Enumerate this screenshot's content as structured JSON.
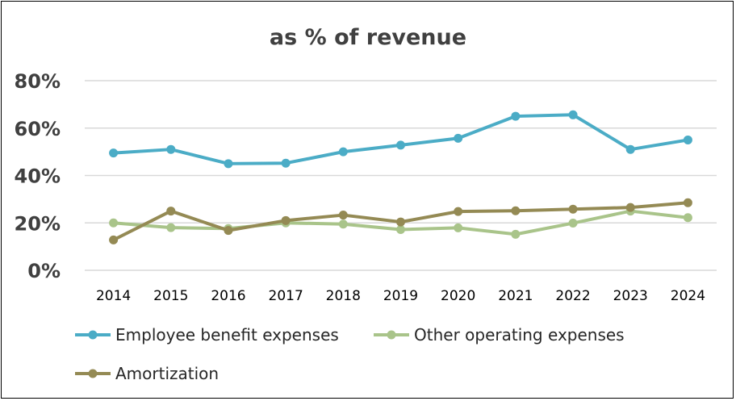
{
  "chart_data": {
    "type": "line",
    "title": "as % of revenue",
    "xlabel": "",
    "ylabel": "",
    "categories": [
      "2014",
      "2015",
      "2016",
      "2017",
      "2018",
      "2019",
      "2020",
      "2021",
      "2022",
      "2023",
      "2024"
    ],
    "ylim": [
      0,
      80
    ],
    "yticks": [
      0,
      20,
      40,
      60,
      80
    ],
    "ytick_labels": [
      "0%",
      "20%",
      "40%",
      "60%",
      "80%"
    ],
    "grid": true,
    "legend_position": "bottom-left",
    "series": [
      {
        "name": "Employee benefit expenses",
        "color": "#4bacc6",
        "values": [
          49.5,
          51,
          45,
          45.2,
          50,
          52.8,
          55.7,
          65,
          65.6,
          51,
          55
        ]
      },
      {
        "name": "Other operating expenses",
        "color": "#a9c48a",
        "values": [
          20,
          18,
          17.6,
          20,
          19.5,
          17.2,
          17.9,
          15.2,
          19.9,
          25,
          22.2
        ]
      },
      {
        "name": "Amortization",
        "color": "#948a54",
        "values": [
          12.8,
          25,
          16.8,
          21,
          23.3,
          20.4,
          24.8,
          25.1,
          25.8,
          26.5,
          28.5
        ]
      }
    ]
  }
}
